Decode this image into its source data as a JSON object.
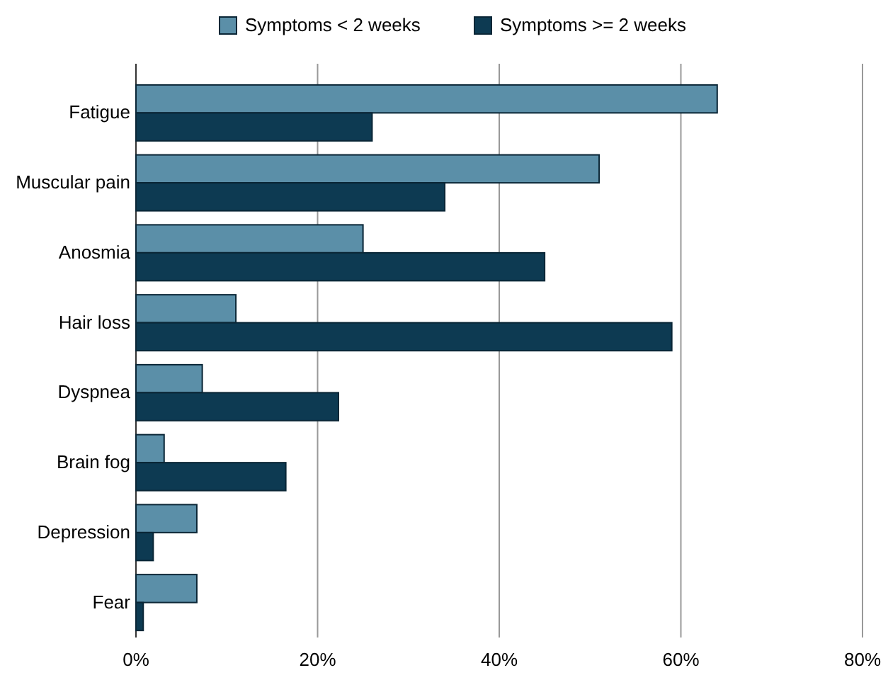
{
  "chart_data": {
    "type": "bar",
    "orientation": "horizontal",
    "categories": [
      "Fatigue",
      "Muscular pain",
      "Anosmia",
      "Hair loss",
      "Dyspnea",
      "Brain fog",
      "Depression",
      "Fear"
    ],
    "series": [
      {
        "name": "Symptoms < 2 weeks",
        "color": "#5b8fa8",
        "values": [
          64,
          51,
          25,
          11,
          7.3,
          3.1,
          6.7,
          6.7
        ]
      },
      {
        "name": "Symptoms >= 2 weeks",
        "color": "#0d3a52",
        "values": [
          26,
          34,
          45,
          59,
          22.3,
          16.5,
          1.9,
          0.8
        ]
      }
    ],
    "xlim": [
      0,
      80
    ],
    "xticks": [
      {
        "value": 0,
        "label": "0%"
      },
      {
        "value": 20,
        "label": "20%"
      },
      {
        "value": 40,
        "label": "40%"
      },
      {
        "value": 60,
        "label": "60%"
      },
      {
        "value": 80,
        "label": "80%"
      }
    ],
    "grid": "x",
    "legend": "top"
  }
}
